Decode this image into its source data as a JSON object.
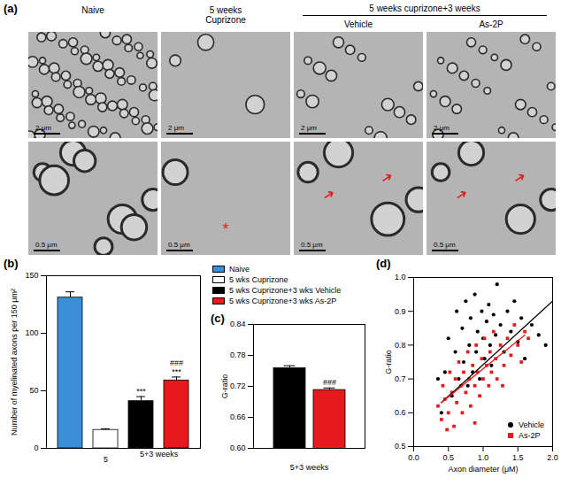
{
  "panel_a": {
    "label": "(a)",
    "headers": [
      {
        "text": "Naive",
        "columns": [
          0
        ]
      },
      {
        "text": "5 weeks\nCuprizone",
        "columns": [
          1
        ]
      },
      {
        "text": "5 weeks cuprizone+3 weeks",
        "columns": [
          2,
          3
        ]
      }
    ],
    "subheaders": [
      null,
      null,
      "Vehicle",
      "As-2P"
    ],
    "rows": [
      {
        "scale_bars": [
          "2 μm",
          "2 μm",
          "2 μm",
          "2 μm"
        ]
      },
      {
        "scale_bars": [
          "0.5 μm",
          "0.5 μm",
          "0.5 μm",
          "0.5 μm"
        ],
        "marks": [
          {
            "column": 1,
            "text": "*"
          }
        ]
      }
    ]
  },
  "chart_data": [
    {
      "panel": "(b)",
      "type": "bar",
      "categories": [
        null,
        "5",
        null,
        null
      ],
      "values": [
        131,
        16,
        41,
        59
      ],
      "errors": [
        5,
        1,
        4,
        3
      ],
      "colors": [
        "#3b8fd8",
        "#ffffff",
        "#000000",
        "#e8191c"
      ],
      "legend_entries": [
        "Naive",
        "5 wks Cuprizone",
        "5 wks Cuprizone+3 wks Vehicle",
        "5 wks Cuprizone+3 wks As-2P"
      ],
      "legend": "top-right",
      "ylabel": "Number of myelinated axons per 150 μm²",
      "ylim": [
        0,
        150
      ],
      "yticks": [
        0,
        50,
        100,
        150
      ],
      "annotations": [
        {
          "text": "***",
          "index": 2
        },
        {
          "text": "###",
          "index": 3
        },
        {
          "text": "***",
          "index": 3
        }
      ],
      "group_labels": [
        {
          "text": "5+3 weeks",
          "indices": [
            2,
            3
          ]
        }
      ]
    },
    {
      "panel": "(c)",
      "type": "bar",
      "categories": [
        null,
        null
      ],
      "values": [
        0.755,
        0.713
      ],
      "errors": [
        0.005,
        0.004
      ],
      "colors": [
        "#000000",
        "#e8191c"
      ],
      "xlabel": "5+3 weeks",
      "ylabel": "G-ratio",
      "ylim": [
        0.6,
        0.84
      ],
      "yticks": [
        {
          "value": 0.6,
          "label": "0.60"
        },
        {
          "value": 0.66,
          "label": "0.66"
        },
        {
          "value": 0.72,
          "label": "0.72"
        },
        {
          "value": 0.78,
          "label": "0.78"
        },
        {
          "value": 0.84,
          "label": "0.84"
        }
      ],
      "annotations": [
        {
          "text": "###",
          "index": 1
        }
      ]
    },
    {
      "panel": "(d)",
      "type": "scatter",
      "xlabel": "Axon diameter (μM)",
      "ylabel": "G-ratio",
      "xlim": [
        0,
        2
      ],
      "ylim": [
        0.5,
        1
      ],
      "xticks": [
        {
          "value": 0,
          "label": "0.0"
        },
        {
          "value": 0.5,
          "label": "0.5"
        },
        {
          "value": 1,
          "label": "1.0"
        },
        {
          "value": 1.5,
          "label": "1.5"
        },
        {
          "value": 2,
          "label": "2.0"
        }
      ],
      "yticks": [
        0.5,
        0.6,
        0.7,
        0.8,
        0.9,
        {
          "value": 1,
          "label": "1.0"
        }
      ],
      "legend": "bottom-right",
      "series": [
        {
          "name": "Vehicle",
          "color": "#000000",
          "marker": "circle",
          "x": [
            0.45,
            0.5,
            0.55,
            0.6,
            0.62,
            0.65,
            0.7,
            0.72,
            0.75,
            0.78,
            0.8,
            0.82,
            0.85,
            0.88,
            0.9,
            0.92,
            0.95,
            0.98,
            1.0,
            1.02,
            1.05,
            1.08,
            1.1,
            1.12,
            1.15,
            1.18,
            1.2,
            1.25,
            1.3,
            1.35,
            1.4,
            1.45,
            1.5,
            1.55,
            1.6,
            1.7,
            1.8,
            1.9,
            0.4,
            0.35
          ],
          "values": [
            0.72,
            0.82,
            0.65,
            0.78,
            0.9,
            0.7,
            0.85,
            0.75,
            0.93,
            0.68,
            0.8,
            0.88,
            0.72,
            0.95,
            0.78,
            0.84,
            0.7,
            0.9,
            0.82,
            0.76,
            0.87,
            0.92,
            0.8,
            0.74,
            0.89,
            0.83,
            0.98,
            0.86,
            0.78,
            0.9,
            0.84,
            0.93,
            0.81,
            0.88,
            0.76,
            0.86,
            0.83,
            0.8,
            0.6,
            0.7
          ],
          "fit": {
            "x": [
              0.4,
              2.0
            ],
            "values": [
              0.63,
              0.93
            ]
          }
        },
        {
          "name": "As-2P",
          "color": "#e8191c",
          "marker": "square",
          "x": [
            0.35,
            0.4,
            0.42,
            0.45,
            0.5,
            0.52,
            0.55,
            0.58,
            0.6,
            0.62,
            0.65,
            0.68,
            0.7,
            0.72,
            0.75,
            0.78,
            0.8,
            0.82,
            0.85,
            0.88,
            0.9,
            0.92,
            0.95,
            0.98,
            1.0,
            1.02,
            1.05,
            1.08,
            1.1,
            1.12,
            1.15,
            1.18,
            1.2,
            1.25,
            1.3,
            1.35,
            1.4,
            1.45,
            1.5,
            1.55,
            1.6,
            1.65,
            0.48,
            1.28,
            0.88
          ],
          "values": [
            0.62,
            0.58,
            0.68,
            0.64,
            0.6,
            0.72,
            0.66,
            0.56,
            0.7,
            0.63,
            0.75,
            0.68,
            0.6,
            0.72,
            0.66,
            0.78,
            0.7,
            0.62,
            0.74,
            0.68,
            0.8,
            0.72,
            0.65,
            0.76,
            0.7,
            0.82,
            0.74,
            0.68,
            0.78,
            0.72,
            0.84,
            0.76,
            0.7,
            0.8,
            0.74,
            0.82,
            0.77,
            0.86,
            0.8,
            0.75,
            0.84,
            0.82,
            0.55,
            0.68,
            0.57
          ],
          "fit": {
            "x": [
              0.4,
              1.6
            ],
            "values": [
              0.63,
              0.83
            ]
          }
        }
      ]
    }
  ]
}
